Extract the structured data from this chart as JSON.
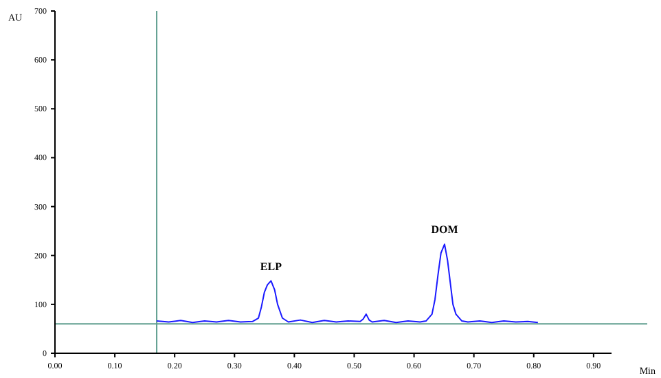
{
  "chart_data": {
    "type": "line",
    "xlabel": "Min",
    "ylabel": "AU",
    "annotations": [
      {
        "text": "ELP",
        "x": 0.361,
        "y": 148
      },
      {
        "text": "DOM",
        "x": 0.651,
        "y": 223
      }
    ],
    "x": [
      0.17,
      0.19,
      0.21,
      0.23,
      0.25,
      0.27,
      0.29,
      0.31,
      0.33,
      0.34,
      0.345,
      0.35,
      0.355,
      0.361,
      0.367,
      0.372,
      0.38,
      0.39,
      0.41,
      0.43,
      0.45,
      0.47,
      0.49,
      0.51,
      0.515,
      0.52,
      0.525,
      0.53,
      0.55,
      0.57,
      0.59,
      0.61,
      0.62,
      0.63,
      0.635,
      0.64,
      0.645,
      0.651,
      0.656,
      0.66,
      0.665,
      0.67,
      0.68,
      0.69,
      0.71,
      0.73,
      0.75,
      0.77,
      0.79,
      0.807
    ],
    "series": [
      {
        "color": "#1a1aff",
        "values": [
          66,
          64,
          67,
          63,
          66,
          64,
          67,
          64,
          65,
          72,
          95,
          125,
          140,
          148,
          130,
          100,
          72,
          64,
          68,
          63,
          67,
          64,
          66,
          65,
          70,
          80,
          68,
          64,
          67,
          63,
          66,
          64,
          66,
          80,
          110,
          160,
          205,
          223,
          190,
          150,
          100,
          80,
          66,
          64,
          66,
          63,
          66,
          64,
          65,
          63
        ]
      }
    ],
    "xlim": [
      0,
      0.93
    ],
    "ylim": [
      0,
      700
    ],
    "xticks": [
      {
        "value": 0,
        "label": "0.00"
      },
      {
        "value": 0.1,
        "label": "0.10"
      },
      {
        "value": 0.2,
        "label": "0.20"
      },
      {
        "value": 0.3,
        "label": "0.30"
      },
      {
        "value": 0.4,
        "label": "0.40"
      },
      {
        "value": 0.5,
        "label": "0.50"
      },
      {
        "value": 0.6,
        "label": "0.60"
      },
      {
        "value": 0.7,
        "label": "0.70"
      },
      {
        "value": 0.8,
        "label": "0.80"
      },
      {
        "value": 0.9,
        "label": "0.90"
      }
    ],
    "yticks": [
      0,
      100,
      200,
      300,
      400,
      500,
      600,
      700
    ],
    "ref_lines": [
      {
        "axis": "x",
        "value": 0.17,
        "color": "#5f9e8f"
      },
      {
        "axis": "y",
        "value": 60,
        "color": "#5f9e8f"
      }
    ],
    "grid": false,
    "marker": "none",
    "line_style": "solid"
  }
}
